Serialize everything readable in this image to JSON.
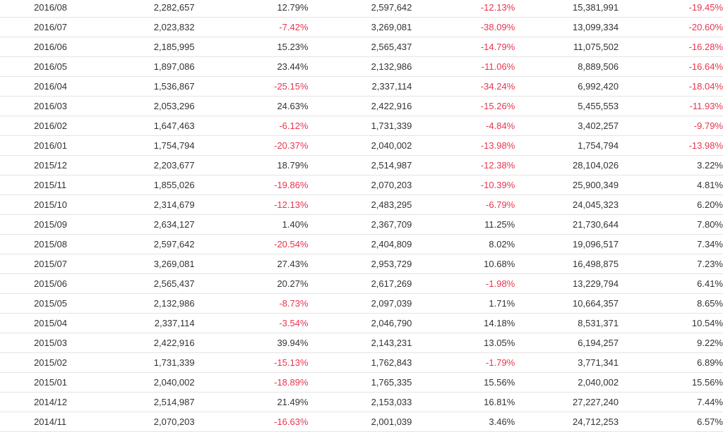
{
  "colors": {
    "text": "#333333",
    "negative": "#e8344e",
    "row_border": "#e4e4e4"
  },
  "rows": [
    [
      "2016/08",
      "2,282,657",
      "12.79%",
      "2,597,642",
      "-12.13%",
      "15,381,991",
      "-19.45%"
    ],
    [
      "2016/07",
      "2,023,832",
      "-7.42%",
      "3,269,081",
      "-38.09%",
      "13,099,334",
      "-20.60%"
    ],
    [
      "2016/06",
      "2,185,995",
      "15.23%",
      "2,565,437",
      "-14.79%",
      "11,075,502",
      "-16.28%"
    ],
    [
      "2016/05",
      "1,897,086",
      "23.44%",
      "2,132,986",
      "-11.06%",
      "8,889,506",
      "-16.64%"
    ],
    [
      "2016/04",
      "1,536,867",
      "-25.15%",
      "2,337,114",
      "-34.24%",
      "6,992,420",
      "-18.04%"
    ],
    [
      "2016/03",
      "2,053,296",
      "24.63%",
      "2,422,916",
      "-15.26%",
      "5,455,553",
      "-11.93%"
    ],
    [
      "2016/02",
      "1,647,463",
      "-6.12%",
      "1,731,339",
      "-4.84%",
      "3,402,257",
      "-9.79%"
    ],
    [
      "2016/01",
      "1,754,794",
      "-20.37%",
      "2,040,002",
      "-13.98%",
      "1,754,794",
      "-13.98%"
    ],
    [
      "2015/12",
      "2,203,677",
      "18.79%",
      "2,514,987",
      "-12.38%",
      "28,104,026",
      "3.22%"
    ],
    [
      "2015/11",
      "1,855,026",
      "-19.86%",
      "2,070,203",
      "-10.39%",
      "25,900,349",
      "4.81%"
    ],
    [
      "2015/10",
      "2,314,679",
      "-12.13%",
      "2,483,295",
      "-6.79%",
      "24,045,323",
      "6.20%"
    ],
    [
      "2015/09",
      "2,634,127",
      "1.40%",
      "2,367,709",
      "11.25%",
      "21,730,644",
      "7.80%"
    ],
    [
      "2015/08",
      "2,597,642",
      "-20.54%",
      "2,404,809",
      "8.02%",
      "19,096,517",
      "7.34%"
    ],
    [
      "2015/07",
      "3,269,081",
      "27.43%",
      "2,953,729",
      "10.68%",
      "16,498,875",
      "7.23%"
    ],
    [
      "2015/06",
      "2,565,437",
      "20.27%",
      "2,617,269",
      "-1.98%",
      "13,229,794",
      "6.41%"
    ],
    [
      "2015/05",
      "2,132,986",
      "-8.73%",
      "2,097,039",
      "1.71%",
      "10,664,357",
      "8.65%"
    ],
    [
      "2015/04",
      "2,337,114",
      "-3.54%",
      "2,046,790",
      "14.18%",
      "8,531,371",
      "10.54%"
    ],
    [
      "2015/03",
      "2,422,916",
      "39.94%",
      "2,143,231",
      "13.05%",
      "6,194,257",
      "9.22%"
    ],
    [
      "2015/02",
      "1,731,339",
      "-15.13%",
      "1,762,843",
      "-1.79%",
      "3,771,341",
      "6.89%"
    ],
    [
      "2015/01",
      "2,040,002",
      "-18.89%",
      "1,765,335",
      "15.56%",
      "2,040,002",
      "15.56%"
    ],
    [
      "2014/12",
      "2,514,987",
      "21.49%",
      "2,153,033",
      "16.81%",
      "27,227,240",
      "7.44%"
    ],
    [
      "2014/11",
      "2,070,203",
      "-16.63%",
      "2,001,039",
      "3.46%",
      "24,712,253",
      "6.57%"
    ]
  ]
}
